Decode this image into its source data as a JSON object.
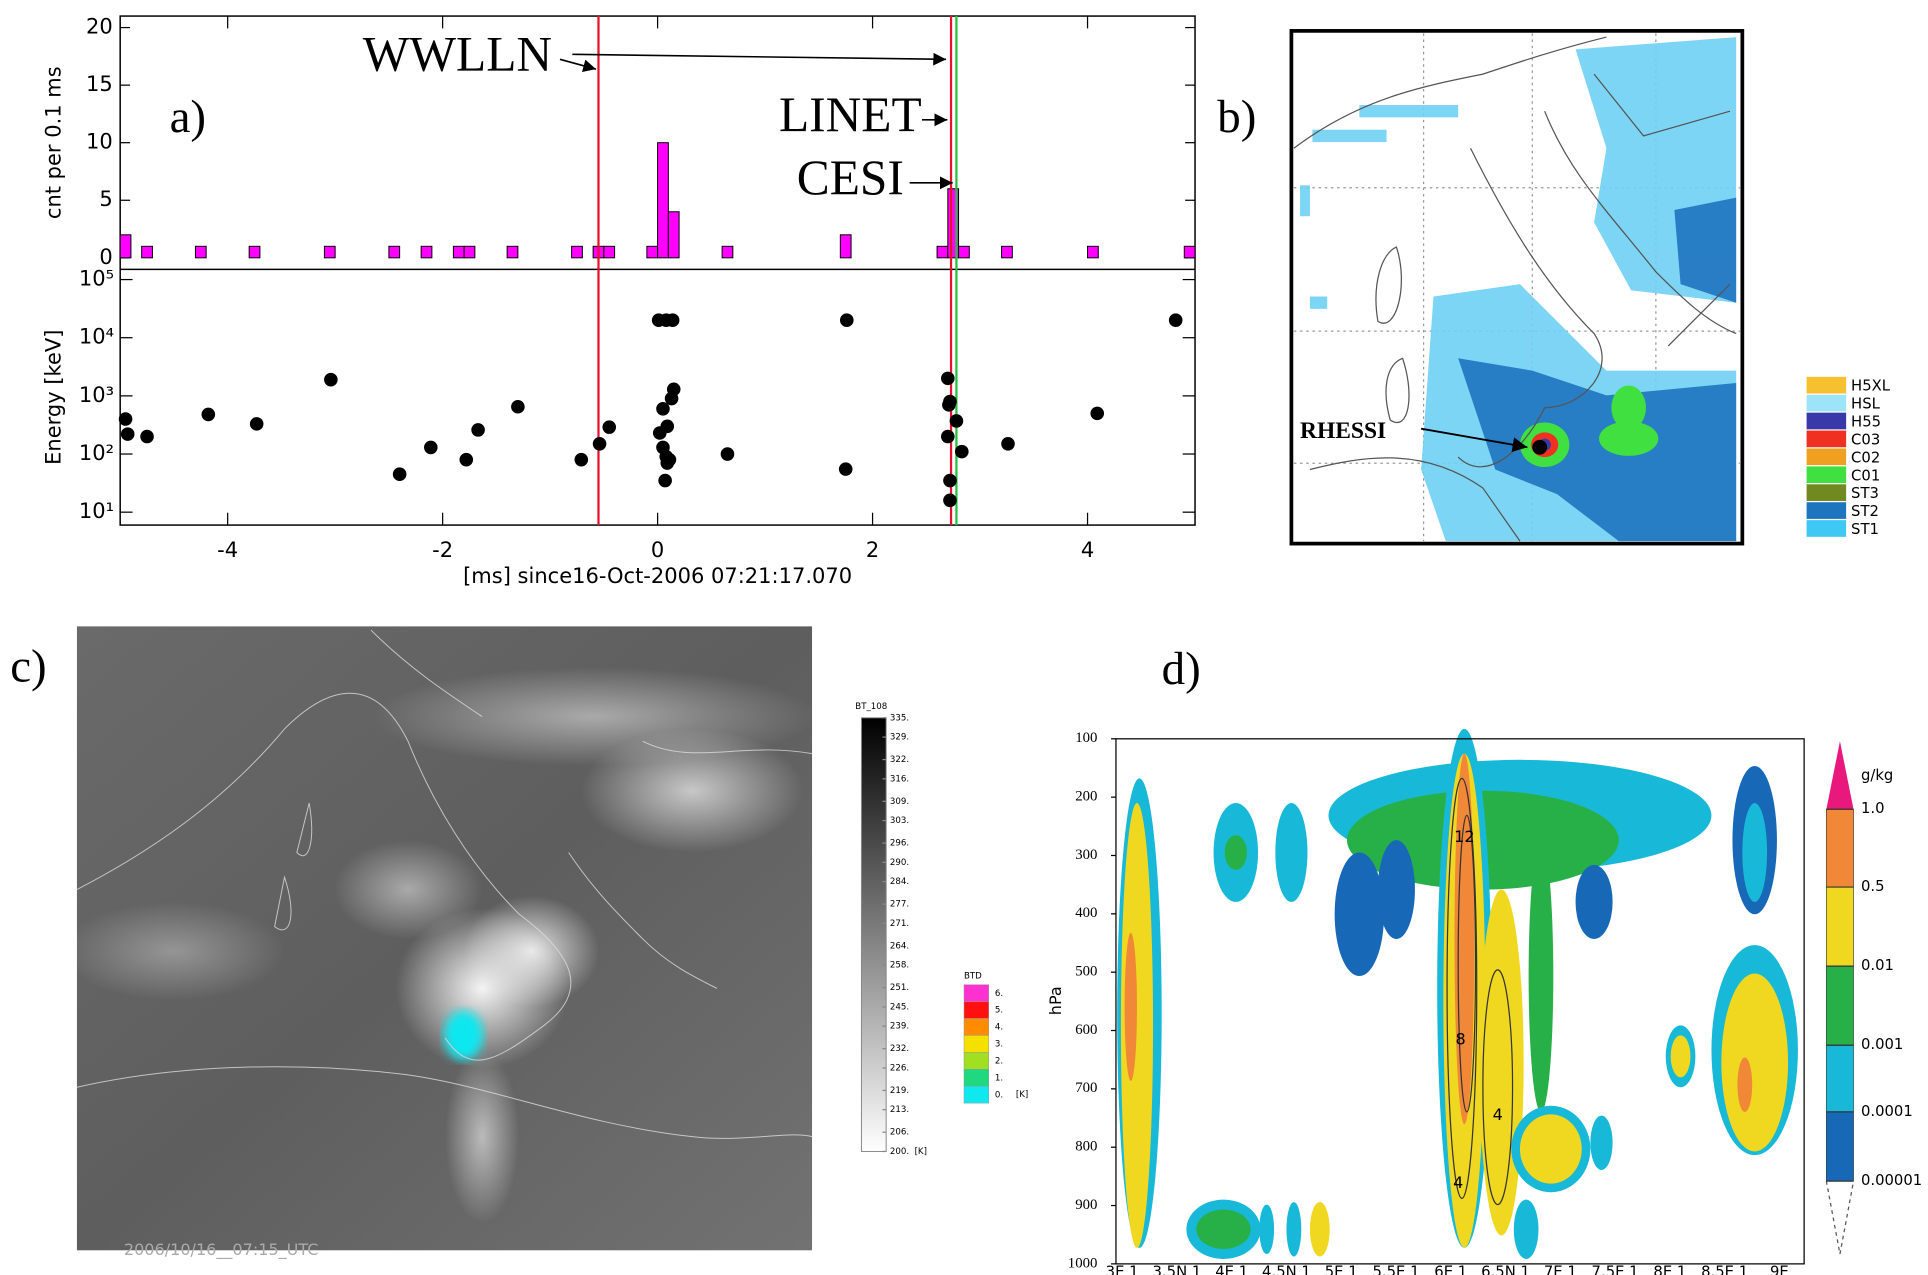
{
  "chart_data": [
    {
      "type": "histogram",
      "label": "a)",
      "ylabel": "cnt per 0.1 ms",
      "bins": [
        -5,
        -4.9,
        -4.8,
        -4.7,
        -4.6,
        -4.5,
        -4.4,
        -4.3,
        -4.2,
        -4.1,
        -4,
        -3.9,
        -3.8,
        -3.7,
        -3.6,
        -3.5,
        -3.4,
        -3.3,
        -3.2,
        -3.1,
        -3,
        -2.9,
        -2.8,
        -2.7,
        -2.6,
        -2.5,
        -2.4,
        -2.3,
        -2.2,
        -2.1,
        -2,
        -1.9,
        -1.8,
        -1.7,
        -1.6,
        -1.5,
        -1.4,
        -1.3,
        -1.2,
        -1.1,
        -1,
        -0.9,
        -0.8,
        -0.7,
        -0.6,
        -0.5,
        -0.4,
        -0.3,
        -0.2,
        -0.1,
        0,
        0.1,
        0.2,
        0.3,
        0.4,
        0.5,
        0.6,
        0.7,
        0.8,
        0.9,
        1,
        1.1,
        1.2,
        1.3,
        1.4,
        1.5,
        1.6,
        1.7,
        1.8,
        1.9,
        2,
        2.1,
        2.2,
        2.3,
        2.4,
        2.5,
        2.6,
        2.7,
        2.8,
        2.9,
        3,
        3.1,
        3.2,
        3.3,
        3.4,
        3.5,
        3.6,
        3.7,
        3.8,
        3.9,
        4,
        4.1,
        4.2,
        4.3,
        4.4,
        4.5,
        4.6,
        4.7,
        4.8,
        4.9,
        5
      ],
      "values": [
        2,
        0,
        1,
        0,
        0,
        0,
        0,
        1,
        0,
        0,
        0,
        0,
        1,
        0,
        0,
        0,
        0,
        0,
        0,
        1,
        0,
        0,
        0,
        0,
        0,
        1,
        0,
        0,
        1,
        0,
        0,
        1,
        1,
        0,
        0,
        0,
        1,
        0,
        0,
        0,
        0,
        0,
        1,
        0,
        1,
        1,
        0,
        0,
        0,
        1,
        10,
        4,
        0,
        0,
        0,
        0,
        1,
        0,
        0,
        0,
        0,
        0,
        0,
        0,
        0,
        0,
        0,
        2,
        0,
        0,
        0,
        0,
        0,
        0,
        0,
        0,
        1,
        6,
        1,
        0,
        0,
        0,
        1,
        0,
        0,
        0,
        0,
        0,
        0,
        0,
        1,
        0,
        0,
        0,
        0,
        0,
        0,
        0,
        0,
        1
      ],
      "color": "#ff00ff",
      "xlim": [
        -5,
        5
      ],
      "ylim": [
        -1,
        21
      ],
      "yticks": [
        0,
        5,
        10,
        15,
        20
      ],
      "events": [
        {
          "name": "WWLLN",
          "x": -0.55,
          "color": "#e8102a"
        },
        {
          "name": "LINET",
          "x": 2.73,
          "color": "#e8102a"
        },
        {
          "name": "CESI",
          "x": 2.78,
          "color": "#20c040"
        }
      ]
    },
    {
      "type": "scatter",
      "ylabel": "Energy [keV]",
      "xlabel": "[ms] since16-Oct-2006 07:21:17.070",
      "x": [
        -4.95,
        -4.93,
        -4.75,
        -4.18,
        -3.73,
        -3.04,
        -2.4,
        -2.11,
        -1.78,
        -1.67,
        -1.3,
        -0.71,
        -0.54,
        -0.45,
        0.01,
        0.08,
        0.14,
        0.05,
        0.13,
        0.15,
        0.02,
        0.09,
        0.05,
        0.08,
        0.11,
        0.09,
        0.07,
        0.65,
        1.76,
        1.75,
        2.7,
        2.71,
        2.72,
        2.7,
        2.72,
        2.72,
        2.78,
        2.83,
        3.26,
        4.09,
        4.82
      ],
      "values": [
        400,
        220,
        200,
        480,
        330,
        1900,
        45,
        130,
        80,
        260,
        650,
        80,
        150,
        290,
        20000,
        20000,
        20000,
        600,
        900,
        1300,
        230,
        300,
        130,
        90,
        80,
        70,
        35,
        100,
        20000,
        55,
        2000,
        700,
        800,
        200,
        35,
        16,
        370,
        110,
        150,
        500,
        20000
      ],
      "color": "#000000",
      "xlim": [
        -5,
        5
      ],
      "xticks": [
        -4,
        -2,
        0,
        2,
        4
      ],
      "ylim": [
        6,
        150000
      ],
      "log_y": true,
      "yticks": [
        {
          "value": 10,
          "label": "10¹"
        },
        {
          "value": 100,
          "label": "10²"
        },
        {
          "value": 1000,
          "label": "10³"
        },
        {
          "value": 10000,
          "label": "10⁴"
        },
        {
          "value": 100000,
          "label": "10⁵"
        }
      ]
    },
    {
      "type": "contour",
      "label": "d)",
      "ylabel": "hPa",
      "categories": [
        "3E 1",
        "3.5N 1",
        "4E 1",
        "4.5N 1",
        "5E 1",
        "5.5E 1",
        "6E 1",
        "6.5N 1",
        "7E 1",
        "7.5E 1",
        "8E 1",
        "8.5E 1",
        "9E"
      ],
      "ylim": [
        1000,
        100
      ],
      "yticks": [
        100,
        200,
        300,
        400,
        500,
        600,
        700,
        800,
        900,
        1000
      ],
      "contour_labels": [
        12,
        8,
        4,
        4
      ],
      "colorbar": {
        "label": "g/kg",
        "levels": [
          {
            "value": 1,
            "label": "1.0"
          },
          0.5,
          0.01,
          0.001,
          0.0001,
          {
            "value": 1e-05,
            "label": "0.00001"
          }
        ],
        "colors": [
          "#e8187c",
          "#f08838",
          "#f0d820",
          "#28b048",
          "#18b8d8",
          "#1868b8"
        ]
      }
    }
  ],
  "panel_b": {
    "label": "b)",
    "annotation": "RHESSI",
    "legend": [
      {
        "name": "H5XL",
        "color": "#f6c030"
      },
      {
        "name": "HSL",
        "color": "#9ee4f8"
      },
      {
        "name": "H55",
        "color": "#3838a8"
      },
      {
        "name": "C03",
        "color": "#f03020"
      },
      {
        "name": "C02",
        "color": "#f0a020"
      },
      {
        "name": "C01",
        "color": "#40e040"
      },
      {
        "name": "ST3",
        "color": "#708a20"
      },
      {
        "name": "ST2",
        "color": "#1f74c0"
      },
      {
        "name": "ST1",
        "color": "#40c8f4"
      }
    ]
  },
  "panel_c": {
    "label": "c)",
    "timestamp": "2006/10/16__07:15_UTC",
    "colorbar": {
      "title": "BT_108",
      "unit": "[K]",
      "ticks": [
        {
          "value": 335,
          "label": "335."
        },
        {
          "value": 329,
          "label": "329."
        },
        {
          "value": 322,
          "label": "322."
        },
        {
          "value": 316,
          "label": "316."
        },
        {
          "value": 309,
          "label": "309."
        },
        {
          "value": 303,
          "label": "303."
        },
        {
          "value": 296,
          "label": "296."
        },
        {
          "value": 290,
          "label": "290."
        },
        {
          "value": 284,
          "label": "284."
        },
        {
          "value": 277,
          "label": "277."
        },
        {
          "value": 271,
          "label": "271."
        },
        {
          "value": 264,
          "label": "264."
        },
        {
          "value": 258,
          "label": "258."
        },
        {
          "value": 251,
          "label": "251."
        },
        {
          "value": 245,
          "label": "245."
        },
        {
          "value": 239,
          "label": "239."
        },
        {
          "value": 232,
          "label": "232."
        },
        {
          "value": 226,
          "label": "226."
        },
        {
          "value": 219,
          "label": "219."
        },
        {
          "value": 213,
          "label": "213."
        },
        {
          "value": 206,
          "label": "206."
        },
        {
          "value": 200,
          "label": "200."
        }
      ]
    },
    "btd_legend": {
      "title": "BTD",
      "unit": "[K]",
      "entries": [
        {
          "value": 6,
          "label": "6.",
          "color": "#ff30d0"
        },
        {
          "value": 5,
          "label": "5.",
          "color": "#ff1010"
        },
        {
          "value": 4,
          "label": "4.",
          "color": "#ff8c00"
        },
        {
          "value": 3,
          "label": "3.",
          "color": "#f5e000"
        },
        {
          "value": 2,
          "label": "2.",
          "color": "#a0e020"
        },
        {
          "value": 1,
          "label": "1.",
          "color": "#20d880"
        },
        {
          "value": 0,
          "label": "0.",
          "color": "#10e8f0"
        }
      ]
    }
  }
}
